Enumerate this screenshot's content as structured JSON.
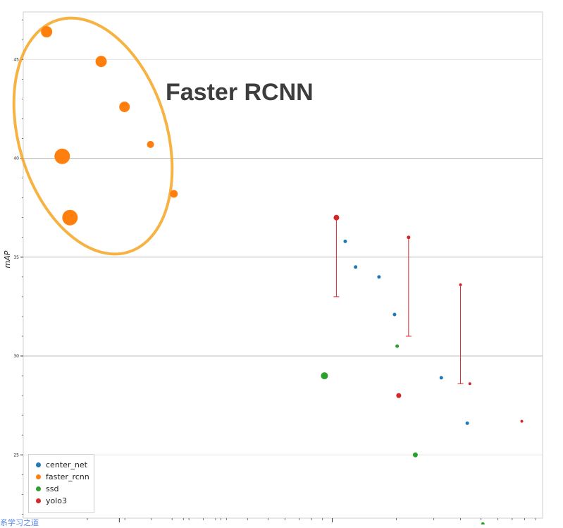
{
  "chart_data": {
    "type": "scatter",
    "title": "",
    "annotation": "Faster RCNN",
    "xlabel": "",
    "ylabel": "mAP",
    "xlim": [
      0,
      100
    ],
    "ylim": [
      21.8,
      47.4
    ],
    "y_ticks": [
      25,
      30,
      35,
      40,
      45
    ],
    "grid": true,
    "legend_position": "bottom-left",
    "series": [
      {
        "name": "center_net",
        "color": "#1f77b4",
        "points": [
          {
            "x": 62.0,
            "y": 35.8,
            "size": 2.5
          },
          {
            "x": 64.0,
            "y": 34.5,
            "size": 2.5
          },
          {
            "x": 68.5,
            "y": 34.0,
            "size": 2.5
          },
          {
            "x": 71.5,
            "y": 32.1,
            "size": 2.5
          },
          {
            "x": 80.5,
            "y": 28.9,
            "size": 2.5
          },
          {
            "x": 85.5,
            "y": 26.6,
            "size": 2.5
          }
        ]
      },
      {
        "name": "faster_rcnn",
        "color": "#ff7f0e",
        "points": [
          {
            "x": 4.5,
            "y": 46.4,
            "size": 8
          },
          {
            "x": 15.0,
            "y": 44.9,
            "size": 8
          },
          {
            "x": 19.5,
            "y": 42.6,
            "size": 7.5
          },
          {
            "x": 24.5,
            "y": 40.7,
            "size": 5
          },
          {
            "x": 7.5,
            "y": 40.1,
            "size": 11
          },
          {
            "x": 29.0,
            "y": 38.2,
            "size": 5.5
          },
          {
            "x": 9.0,
            "y": 37.0,
            "size": 11
          }
        ]
      },
      {
        "name": "ssd",
        "color": "#2ca02c",
        "points": [
          {
            "x": 58.0,
            "y": 29.0,
            "size": 5
          },
          {
            "x": 72.0,
            "y": 30.5,
            "size": 2.5
          },
          {
            "x": 75.5,
            "y": 25.0,
            "size": 3.5
          },
          {
            "x": 88.5,
            "y": 21.5,
            "size": 2.5
          }
        ]
      },
      {
        "name": "yolo3",
        "color": "#d62728",
        "points": [
          {
            "x": 60.3,
            "y": 37.0,
            "size": 4
          },
          {
            "x": 72.3,
            "y": 28.0,
            "size": 3.5
          },
          {
            "x": 74.2,
            "y": 36.0,
            "size": 2.5
          },
          {
            "x": 84.2,
            "y": 33.6,
            "size": 2
          },
          {
            "x": 86.0,
            "y": 28.6,
            "size": 2
          },
          {
            "x": 96.0,
            "y": 26.7,
            "size": 2
          }
        ],
        "error_bars": [
          {
            "x": 60.3,
            "y_low": 33.0,
            "y_high": 37.0
          },
          {
            "x": 74.2,
            "y_low": 31.0,
            "y_high": 36.0
          },
          {
            "x": 84.2,
            "y_low": 28.6,
            "y_high": 33.6
          }
        ]
      }
    ]
  },
  "watermark": "系学习之道"
}
